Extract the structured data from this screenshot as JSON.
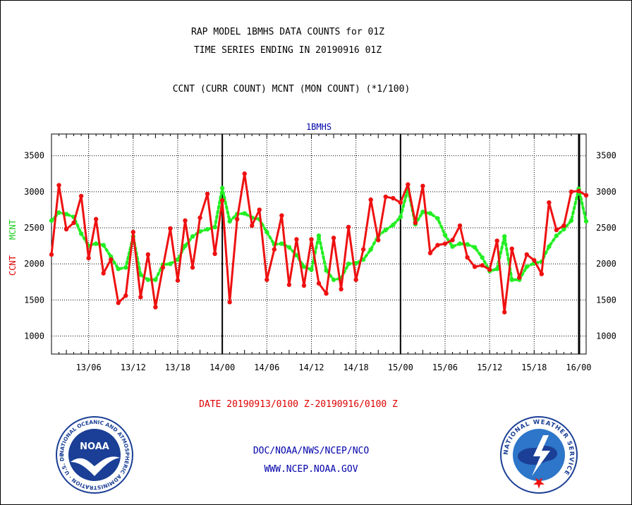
{
  "titles": {
    "line1": "RAP MODEL 1BMHS DATA COUNTS for 01Z",
    "line2": "TIME SERIES ENDING IN 20190916 01Z",
    "subtitle": "CCNT (CURR COUNT) MCNT (MON COUNT) (*1/100)",
    "panel": "1BMHS",
    "ylabel_ccnt": "CCNT",
    "ylabel_mcnt": "MCNT",
    "date_range": "DATE 20190913/0100 Z-20190916/0100 Z",
    "credit_line1": "DOC/NOAA/NWS/NCEP/NCO",
    "credit_line2": "WWW.NCEP.NOAA.GOV"
  },
  "logos": {
    "noaa": {
      "text": "NOAA",
      "ring_text": "NATIONAL OCEANIC AND ATMOSPHERIC ADMINISTRATION · U.S. DEPARTMENT OF COMMERCE"
    },
    "nws": {
      "ring_text": "NATIONAL WEATHER SERVICE"
    }
  },
  "chart_data": {
    "type": "line",
    "title": "RAP MODEL 1BMHS DATA COUNTS for 01Z",
    "x_unit": "hours since 2019-09-13 01Z",
    "xlim": [
      0,
      72
    ],
    "ylim": [
      750,
      3800
    ],
    "yticks": [
      1000,
      1500,
      2000,
      2500,
      3000,
      3500
    ],
    "xtick_labels": [
      {
        "hour": 5,
        "label": "13/06"
      },
      {
        "hour": 11,
        "label": "13/12"
      },
      {
        "hour": 17,
        "label": "13/18"
      },
      {
        "hour": 23,
        "label": "14/00"
      },
      {
        "hour": 29,
        "label": "14/06"
      },
      {
        "hour": 35,
        "label": "14/12"
      },
      {
        "hour": 41,
        "label": "14/18"
      },
      {
        "hour": 47,
        "label": "15/00"
      },
      {
        "hour": 53,
        "label": "15/06"
      },
      {
        "hour": 59,
        "label": "15/12"
      },
      {
        "hour": 65,
        "label": "15/18"
      },
      {
        "hour": 71,
        "label": "16/00"
      }
    ],
    "day_boundaries": [
      23,
      47,
      71
    ],
    "grid": true,
    "series": [
      {
        "name": "CCNT",
        "color": "#ee1111",
        "style": "solid",
        "values": [
          2130,
          3090,
          2480,
          2570,
          2940,
          2080,
          2620,
          1870,
          2060,
          1460,
          1560,
          2440,
          1540,
          2130,
          1400,
          1950,
          2490,
          1770,
          2600,
          1950,
          2640,
          2970,
          2140,
          2880,
          1470,
          2620,
          3250,
          2530,
          2750,
          1780,
          2200,
          2670,
          1710,
          2340,
          1700,
          2340,
          1730,
          1590,
          2360,
          1650,
          2510,
          1780,
          2200,
          2890,
          2330,
          2930,
          2910,
          2850,
          3100,
          2570,
          3080,
          2150,
          2260,
          2280,
          2330,
          2530,
          2090,
          1960,
          1980,
          1920,
          2320,
          1330,
          2210,
          1810,
          2130,
          2050,
          1860,
          2850,
          2470,
          2530,
          3000,
          3010,
          2950
        ]
      },
      {
        "name": "MCNT",
        "color": "#22ee22",
        "style": "dotted",
        "values": [
          2600,
          2710,
          2690,
          2650,
          2420,
          2250,
          2280,
          2260,
          2100,
          1930,
          1950,
          2380,
          1850,
          1780,
          1780,
          1990,
          2000,
          2060,
          2250,
          2380,
          2450,
          2480,
          2510,
          3050,
          2590,
          2690,
          2700,
          2640,
          2620,
          2440,
          2270,
          2280,
          2230,
          2120,
          1960,
          1920,
          2390,
          1910,
          1780,
          1800,
          2000,
          2010,
          2060,
          2200,
          2390,
          2470,
          2540,
          2650,
          3040,
          2550,
          2720,
          2700,
          2630,
          2400,
          2240,
          2280,
          2270,
          2230,
          2090,
          1900,
          1930,
          2380,
          1780,
          1780,
          1960,
          2010,
          2030,
          2240,
          2390,
          2480,
          2600,
          3040,
          2590
        ]
      }
    ]
  }
}
